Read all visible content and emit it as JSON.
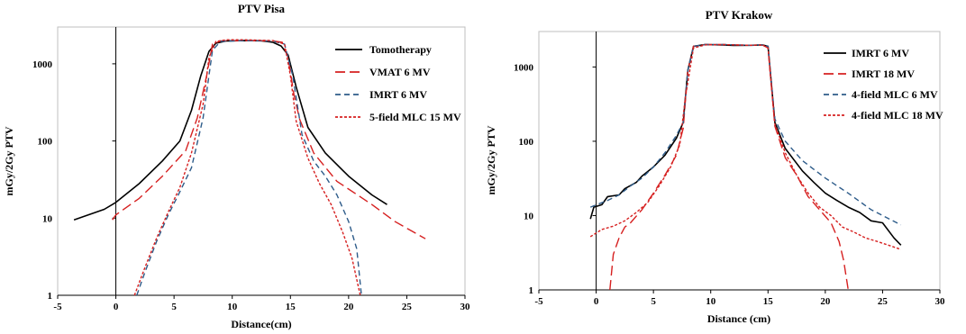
{
  "chart_data": [
    {
      "type": "line",
      "title": "PTV Pisa",
      "xlabel": "Distance(cm)",
      "ylabel": "mGy/2Gy PTV",
      "xlim": [
        -5,
        30
      ],
      "ylim": [
        1,
        3000
      ],
      "y_scale": "log",
      "x_ticks": [
        -5,
        0,
        5,
        10,
        15,
        20,
        25,
        30
      ],
      "x_tick_labels": [
        "-5",
        "0",
        "5",
        "10",
        "15",
        "20",
        "25",
        "30"
      ],
      "y_ticks": [
        1,
        10,
        100,
        1000
      ],
      "y_tick_labels": [
        "1",
        "10",
        "100",
        "1000"
      ],
      "legend_position": "top-right",
      "series": [
        {
          "name": "Tomotherapy",
          "color": "#000000",
          "dash": "solid",
          "x": [
            -3.6,
            -1,
            0,
            2,
            4,
            5.5,
            6.5,
            7.3,
            8,
            8.6,
            9.5,
            11,
            12.5,
            13.5,
            14.2,
            14.8,
            15.5,
            16.5,
            18,
            20,
            22,
            23.3
          ],
          "y": [
            9.5,
            13,
            16,
            28,
            55,
            100,
            250,
            700,
            1450,
            1850,
            1980,
            2000,
            1990,
            1900,
            1700,
            1300,
            500,
            150,
            70,
            35,
            20,
            15
          ]
        },
        {
          "name": "VMAT 6 MV",
          "color": "#d62020",
          "dash": "long",
          "x": [
            -0.3,
            0,
            2,
            4,
            6,
            7,
            7.8,
            8.3,
            9,
            11,
            13.5,
            14.3,
            14.8,
            15.3,
            15.8,
            17,
            19,
            22,
            24,
            26.6
          ],
          "y": [
            9.5,
            11,
            18,
            35,
            75,
            200,
            700,
            1800,
            1980,
            2000,
            1980,
            1900,
            1200,
            400,
            190,
            70,
            30,
            15,
            9,
            5.4
          ]
        },
        {
          "name": "IMRT 6 MV",
          "color": "#2e5c8a",
          "dash": "short",
          "x": [
            1.8,
            2.5,
            3.5,
            4.5,
            5.5,
            6.5,
            7.5,
            8.3,
            9,
            11,
            13.5,
            14.5,
            15.2,
            16,
            17,
            18,
            19,
            20,
            20.7,
            21.1
          ],
          "y": [
            1,
            2,
            5,
            11,
            22,
            45,
            200,
            1500,
            1950,
            2000,
            1970,
            1800,
            700,
            120,
            55,
            35,
            20,
            9,
            4,
            1
          ]
        },
        {
          "name": "5-field MLC 15 MV",
          "color": "#d62020",
          "dash": "dot",
          "x": [
            1.6,
            2.5,
            3.5,
            4.5,
            5.5,
            6.5,
            7.5,
            8,
            8.6,
            9.5,
            11,
            13.5,
            14.5,
            15,
            15.5,
            16.5,
            17.5,
            18.5,
            19.5,
            20.3,
            21
          ],
          "y": [
            1,
            2.3,
            5.5,
            12,
            25,
            70,
            300,
            1200,
            1950,
            2050,
            2050,
            2000,
            1800,
            700,
            180,
            60,
            28,
            15,
            6.5,
            3,
            1
          ]
        }
      ]
    },
    {
      "type": "line",
      "title": "PTV Krakow",
      "xlabel": "Distance (cm)",
      "ylabel": "mGy/2Gy  PTV",
      "xlim": [
        -5,
        30
      ],
      "ylim": [
        1,
        3000
      ],
      "y_scale": "log",
      "x_ticks": [
        -5,
        0,
        5,
        10,
        15,
        20,
        25,
        30
      ],
      "x_tick_labels": [
        "-5",
        "0",
        "5",
        "10",
        "15",
        "20",
        "25",
        "30"
      ],
      "y_ticks": [
        1,
        10,
        100,
        1000
      ],
      "y_tick_labels": [
        "1",
        "10",
        "100",
        "1000"
      ],
      "legend_position": "top-right",
      "series": [
        {
          "name": "IMRT 6 MV",
          "color": "#000000",
          "dash": "solid",
          "x": [
            -0.5,
            -0.2,
            0.5,
            1,
            2,
            2.5,
            3.5,
            4,
            5,
            6,
            7,
            7.6,
            8,
            8.5,
            9.5,
            11,
            12,
            13.5,
            14.5,
            15,
            15.6,
            16.5,
            18,
            19,
            20,
            21,
            22,
            23,
            24,
            25,
            26,
            26.6
          ],
          "y": [
            9,
            13,
            14,
            18,
            19,
            23,
            28,
            34,
            45,
            65,
            110,
            180,
            900,
            1900,
            2000,
            1980,
            1950,
            1960,
            1980,
            1900,
            180,
            80,
            40,
            28,
            20,
            16,
            13,
            11,
            8.5,
            8,
            5,
            4
          ]
        },
        {
          "name": "IMRT 18 MV",
          "color": "#d62020",
          "dash": "long",
          "x": [
            1.2,
            1.5,
            2,
            2.5,
            3,
            4,
            5,
            6,
            7,
            7.6,
            8,
            8.5,
            9.5,
            11,
            13.5,
            14.5,
            15,
            15.6,
            16.5,
            17.5,
            18.5,
            19.5,
            20.5,
            21.2,
            21.6,
            22
          ],
          "y": [
            1,
            3,
            5,
            7,
            8,
            12,
            20,
            35,
            65,
            150,
            900,
            1900,
            2000,
            2000,
            1960,
            1980,
            1800,
            160,
            60,
            35,
            18,
            12,
            8,
            4.5,
            2.5,
            1
          ]
        },
        {
          "name": "4-field MLC 6 MV",
          "color": "#2e5c8a",
          "dash": "short",
          "x": [
            -0.5,
            1,
            2,
            3,
            4,
            5,
            6,
            7,
            7.6,
            8,
            8.5,
            9.5,
            11,
            13.5,
            14.5,
            15,
            15.6,
            16.5,
            18,
            20,
            22,
            24,
            26.6
          ],
          "y": [
            13,
            16,
            19,
            25,
            32,
            45,
            70,
            120,
            180,
            900,
            1900,
            2000,
            2000,
            1960,
            1990,
            1900,
            200,
            100,
            55,
            32,
            20,
            12,
            7.5
          ]
        },
        {
          "name": "4-field MLC 18 MV",
          "color": "#d62020",
          "dash": "dot",
          "x": [
            -0.5,
            0.5,
            1.5,
            2.5,
            3.5,
            4.5,
            5.5,
            6.5,
            7.3,
            7.8,
            8.5,
            9.5,
            11,
            13.5,
            14.5,
            15,
            15.6,
            16.5,
            17.5,
            18.5,
            19.5,
            20.5,
            21.5,
            22.5,
            23.5,
            24.5,
            25.5,
            26.6
          ],
          "y": [
            5.2,
            6.5,
            7.2,
            8.5,
            11,
            15,
            25,
            45,
            90,
            400,
            1800,
            1980,
            2000,
            1960,
            1980,
            1800,
            170,
            70,
            35,
            20,
            13,
            10,
            7,
            6,
            5,
            4.5,
            4,
            3.5
          ]
        }
      ]
    }
  ]
}
